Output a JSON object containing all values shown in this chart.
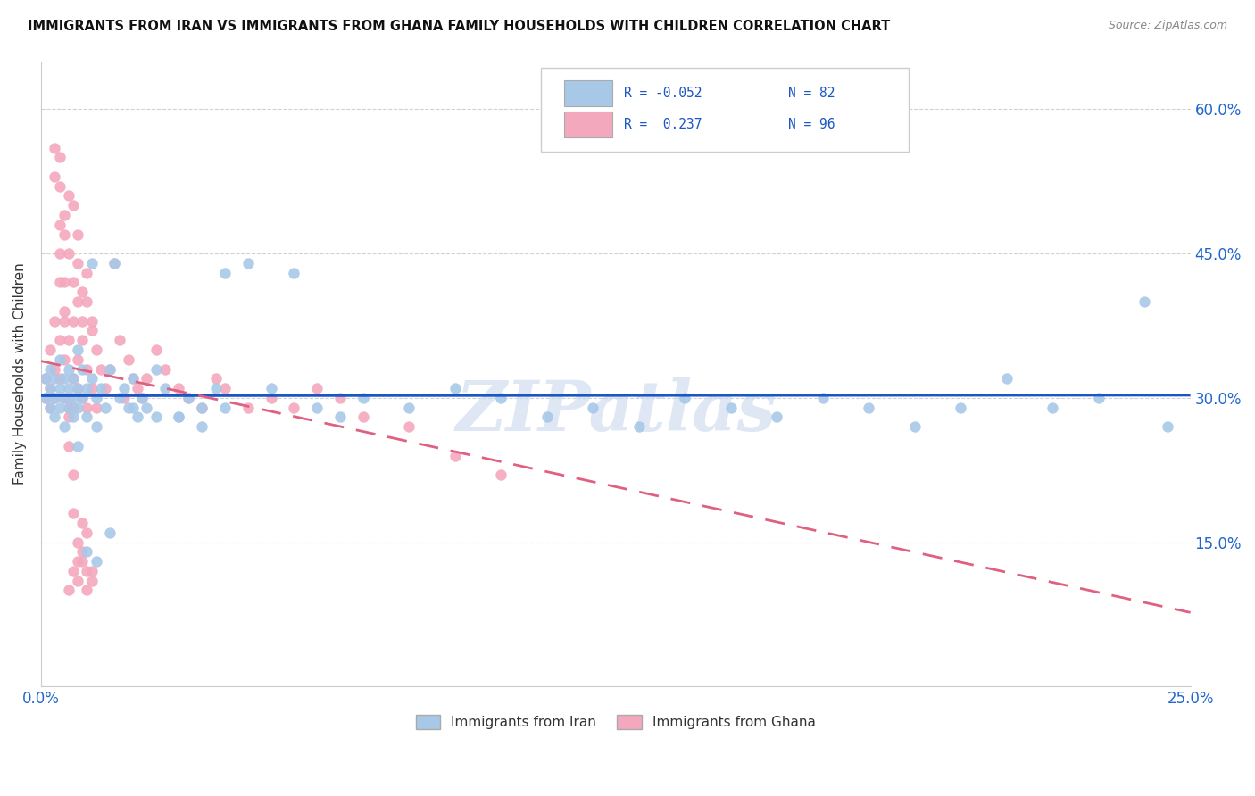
{
  "title": "IMMIGRANTS FROM IRAN VS IMMIGRANTS FROM GHANA FAMILY HOUSEHOLDS WITH CHILDREN CORRELATION CHART",
  "source": "Source: ZipAtlas.com",
  "ylabel": "Family Households with Children",
  "iran_R": -0.052,
  "iran_N": 82,
  "ghana_R": 0.237,
  "ghana_N": 96,
  "iran_color": "#a8c8e8",
  "ghana_color": "#f4a8be",
  "iran_line_color": "#1a56c4",
  "ghana_line_color": "#e06080",
  "watermark": "ZIPatlas",
  "xlim": [
    0.0,
    0.25
  ],
  "ylim": [
    0.0,
    0.65
  ],
  "ytick_vals": [
    0.0,
    0.15,
    0.3,
    0.45,
    0.6
  ],
  "ytick_labels_right": [
    "",
    "15.0%",
    "30.0%",
    "45.0%",
    "60.0%"
  ],
  "xtick_vals": [
    0.0,
    0.05,
    0.1,
    0.15,
    0.2,
    0.25
  ],
  "xtick_labels": [
    "0.0%",
    "",
    "",
    "",
    "",
    "25.0%"
  ],
  "iran_x": [
    0.001,
    0.001,
    0.002,
    0.002,
    0.002,
    0.003,
    0.003,
    0.003,
    0.004,
    0.004,
    0.004,
    0.005,
    0.005,
    0.005,
    0.006,
    0.006,
    0.006,
    0.007,
    0.007,
    0.007,
    0.008,
    0.008,
    0.008,
    0.009,
    0.009,
    0.01,
    0.01,
    0.011,
    0.011,
    0.012,
    0.012,
    0.013,
    0.014,
    0.015,
    0.016,
    0.017,
    0.018,
    0.019,
    0.02,
    0.021,
    0.022,
    0.023,
    0.025,
    0.027,
    0.03,
    0.032,
    0.035,
    0.038,
    0.04,
    0.045,
    0.05,
    0.055,
    0.06,
    0.065,
    0.07,
    0.08,
    0.09,
    0.1,
    0.11,
    0.12,
    0.13,
    0.14,
    0.15,
    0.16,
    0.17,
    0.18,
    0.19,
    0.2,
    0.21,
    0.22,
    0.23,
    0.24,
    0.245,
    0.008,
    0.01,
    0.012,
    0.015,
    0.02,
    0.025,
    0.03,
    0.035,
    0.04
  ],
  "iran_y": [
    0.3,
    0.32,
    0.31,
    0.29,
    0.33,
    0.3,
    0.32,
    0.28,
    0.31,
    0.29,
    0.34,
    0.3,
    0.32,
    0.27,
    0.31,
    0.29,
    0.33,
    0.3,
    0.32,
    0.28,
    0.31,
    0.35,
    0.29,
    0.3,
    0.33,
    0.31,
    0.28,
    0.44,
    0.32,
    0.3,
    0.27,
    0.31,
    0.29,
    0.33,
    0.44,
    0.3,
    0.31,
    0.29,
    0.32,
    0.28,
    0.3,
    0.29,
    0.33,
    0.31,
    0.28,
    0.3,
    0.29,
    0.31,
    0.43,
    0.44,
    0.31,
    0.43,
    0.29,
    0.28,
    0.3,
    0.29,
    0.31,
    0.3,
    0.28,
    0.29,
    0.27,
    0.3,
    0.29,
    0.28,
    0.3,
    0.29,
    0.27,
    0.29,
    0.32,
    0.29,
    0.3,
    0.4,
    0.27,
    0.25,
    0.14,
    0.13,
    0.16,
    0.29,
    0.28,
    0.28,
    0.27,
    0.29
  ],
  "ghana_x": [
    0.001,
    0.001,
    0.002,
    0.002,
    0.002,
    0.003,
    0.003,
    0.003,
    0.004,
    0.004,
    0.004,
    0.005,
    0.005,
    0.005,
    0.006,
    0.006,
    0.006,
    0.007,
    0.007,
    0.007,
    0.008,
    0.008,
    0.008,
    0.009,
    0.009,
    0.01,
    0.01,
    0.011,
    0.011,
    0.012,
    0.012,
    0.013,
    0.014,
    0.015,
    0.016,
    0.017,
    0.018,
    0.019,
    0.02,
    0.021,
    0.022,
    0.023,
    0.025,
    0.027,
    0.03,
    0.032,
    0.035,
    0.038,
    0.04,
    0.045,
    0.05,
    0.055,
    0.06,
    0.065,
    0.07,
    0.08,
    0.09,
    0.1,
    0.004,
    0.004,
    0.005,
    0.005,
    0.006,
    0.006,
    0.007,
    0.007,
    0.008,
    0.008,
    0.009,
    0.009,
    0.01,
    0.01,
    0.011,
    0.003,
    0.003,
    0.004,
    0.004,
    0.005,
    0.005,
    0.006,
    0.006,
    0.007,
    0.007,
    0.008,
    0.008,
    0.009,
    0.009,
    0.01,
    0.01,
    0.011,
    0.006,
    0.007,
    0.008,
    0.009,
    0.01,
    0.011
  ],
  "ghana_y": [
    0.3,
    0.32,
    0.31,
    0.35,
    0.29,
    0.33,
    0.38,
    0.3,
    0.36,
    0.42,
    0.32,
    0.38,
    0.3,
    0.34,
    0.36,
    0.3,
    0.29,
    0.38,
    0.32,
    0.29,
    0.34,
    0.4,
    0.31,
    0.36,
    0.3,
    0.33,
    0.29,
    0.37,
    0.31,
    0.35,
    0.29,
    0.33,
    0.31,
    0.33,
    0.44,
    0.36,
    0.3,
    0.34,
    0.32,
    0.31,
    0.3,
    0.32,
    0.35,
    0.33,
    0.31,
    0.3,
    0.29,
    0.32,
    0.31,
    0.29,
    0.3,
    0.29,
    0.31,
    0.3,
    0.28,
    0.27,
    0.24,
    0.22,
    0.55,
    0.52,
    0.49,
    0.47,
    0.51,
    0.45,
    0.5,
    0.42,
    0.47,
    0.44,
    0.41,
    0.38,
    0.43,
    0.4,
    0.38,
    0.56,
    0.53,
    0.48,
    0.45,
    0.42,
    0.39,
    0.28,
    0.25,
    0.22,
    0.18,
    0.15,
    0.13,
    0.17,
    0.14,
    0.16,
    0.12,
    0.11,
    0.1,
    0.12,
    0.11,
    0.13,
    0.1,
    0.12
  ]
}
